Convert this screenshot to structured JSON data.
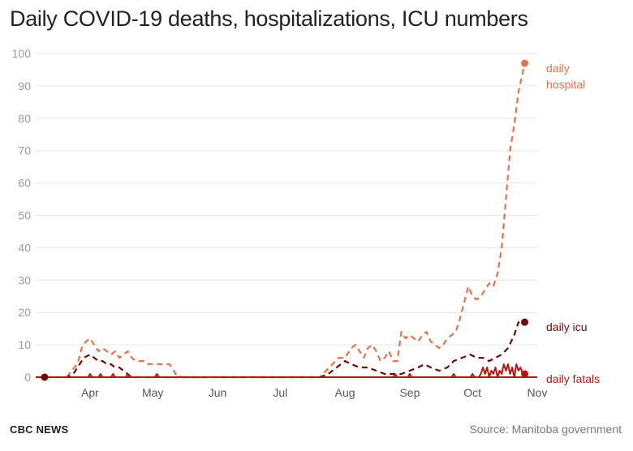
{
  "title": "Daily COVID-19 deaths, hospitalizations, ICU numbers",
  "footer": {
    "brand": "CBC NEWS",
    "source": "Source: Manitoba government"
  },
  "colors": {
    "hospital": "#e2734c",
    "icu": "#6a0a0a",
    "fatals": "#b01818",
    "grid": "#e6e6e6",
    "tick": "#9a9a9a"
  },
  "chart_data": {
    "type": "line",
    "x_unit": "date (2020)",
    "x_start": "2020-03-06",
    "x_end": "2020-11-01",
    "ylim": [
      0,
      100
    ],
    "yticks": [
      0,
      10,
      20,
      30,
      40,
      50,
      60,
      70,
      80,
      90,
      100
    ],
    "xticks": [
      {
        "label": "Apr",
        "date": "2020-04-01"
      },
      {
        "label": "May",
        "date": "2020-05-01"
      },
      {
        "label": "Jun",
        "date": "2020-06-01"
      },
      {
        "label": "Jul",
        "date": "2020-07-01"
      },
      {
        "label": "Aug",
        "date": "2020-08-01"
      },
      {
        "label": "Sep",
        "date": "2020-09-01"
      },
      {
        "label": "Oct",
        "date": "2020-10-01"
      },
      {
        "label": "Nov",
        "date": "2020-11-01"
      }
    ],
    "grid": true,
    "legend": "end-of-line labels",
    "series": [
      {
        "name": "daily hospital",
        "label_lines": [
          "daily",
          "hospital"
        ],
        "color": "#e2734c",
        "dashed": true,
        "points": [
          [
            "2020-03-21",
            0
          ],
          [
            "2020-03-23",
            2
          ],
          [
            "2020-03-26",
            4
          ],
          [
            "2020-03-28",
            9
          ],
          [
            "2020-03-30",
            11
          ],
          [
            "2020-04-01",
            12
          ],
          [
            "2020-04-03",
            10
          ],
          [
            "2020-04-05",
            8
          ],
          [
            "2020-04-07",
            9
          ],
          [
            "2020-04-09",
            8
          ],
          [
            "2020-04-11",
            7
          ],
          [
            "2020-04-13",
            8
          ],
          [
            "2020-04-15",
            6
          ],
          [
            "2020-04-17",
            7
          ],
          [
            "2020-04-19",
            8
          ],
          [
            "2020-04-21",
            6
          ],
          [
            "2020-04-23",
            5
          ],
          [
            "2020-04-25",
            5
          ],
          [
            "2020-04-27",
            5
          ],
          [
            "2020-04-29",
            4
          ],
          [
            "2020-05-01",
            4
          ],
          [
            "2020-05-05",
            4
          ],
          [
            "2020-05-09",
            4
          ],
          [
            "2020-05-12",
            1
          ],
          [
            "2020-05-15",
            0
          ],
          [
            "2020-05-20",
            0
          ],
          [
            "2020-07-01",
            0
          ],
          [
            "2020-07-20",
            0
          ],
          [
            "2020-07-23",
            2
          ],
          [
            "2020-07-26",
            4
          ],
          [
            "2020-07-29",
            6
          ],
          [
            "2020-08-01",
            6
          ],
          [
            "2020-08-04",
            9
          ],
          [
            "2020-08-06",
            10
          ],
          [
            "2020-08-08",
            8
          ],
          [
            "2020-08-10",
            6
          ],
          [
            "2020-08-12",
            9
          ],
          [
            "2020-08-14",
            10
          ],
          [
            "2020-08-16",
            8
          ],
          [
            "2020-08-18",
            5
          ],
          [
            "2020-08-20",
            6
          ],
          [
            "2020-08-22",
            8
          ],
          [
            "2020-08-24",
            5
          ],
          [
            "2020-08-26",
            5
          ],
          [
            "2020-08-28",
            14
          ],
          [
            "2020-08-30",
            12
          ],
          [
            "2020-09-01",
            13
          ],
          [
            "2020-09-03",
            12
          ],
          [
            "2020-09-05",
            11
          ],
          [
            "2020-09-07",
            13
          ],
          [
            "2020-09-09",
            14
          ],
          [
            "2020-09-11",
            11
          ],
          [
            "2020-09-13",
            10
          ],
          [
            "2020-09-15",
            9
          ],
          [
            "2020-09-17",
            10
          ],
          [
            "2020-09-19",
            12
          ],
          [
            "2020-09-21",
            13
          ],
          [
            "2020-09-23",
            14
          ],
          [
            "2020-09-25",
            18
          ],
          [
            "2020-09-27",
            23
          ],
          [
            "2020-09-29",
            28
          ],
          [
            "2020-10-01",
            25
          ],
          [
            "2020-10-03",
            24
          ],
          [
            "2020-10-05",
            25
          ],
          [
            "2020-10-07",
            27
          ],
          [
            "2020-10-09",
            29
          ],
          [
            "2020-10-11",
            28
          ],
          [
            "2020-10-13",
            32
          ],
          [
            "2020-10-15",
            40
          ],
          [
            "2020-10-17",
            55
          ],
          [
            "2020-10-19",
            70
          ],
          [
            "2020-10-21",
            78
          ],
          [
            "2020-10-23",
            88
          ],
          [
            "2020-10-25",
            94
          ],
          [
            "2020-10-26",
            97
          ]
        ],
        "end_value": 97
      },
      {
        "name": "daily icu",
        "label_lines": [
          "daily icu"
        ],
        "color": "#6a0a0a",
        "dashed": true,
        "points": [
          [
            "2020-03-06",
            0
          ],
          [
            "2020-03-21",
            0
          ],
          [
            "2020-03-24",
            1
          ],
          [
            "2020-03-27",
            4
          ],
          [
            "2020-03-29",
            6
          ],
          [
            "2020-04-01",
            7
          ],
          [
            "2020-04-03",
            6
          ],
          [
            "2020-04-05",
            5
          ],
          [
            "2020-04-07",
            5
          ],
          [
            "2020-04-09",
            4
          ],
          [
            "2020-04-11",
            4
          ],
          [
            "2020-04-13",
            3
          ],
          [
            "2020-04-15",
            3
          ],
          [
            "2020-04-17",
            2
          ],
          [
            "2020-04-19",
            1
          ],
          [
            "2020-04-21",
            0
          ],
          [
            "2020-07-20",
            0
          ],
          [
            "2020-07-24",
            1
          ],
          [
            "2020-07-28",
            3
          ],
          [
            "2020-08-01",
            5
          ],
          [
            "2020-08-04",
            4
          ],
          [
            "2020-08-08",
            3
          ],
          [
            "2020-08-12",
            3
          ],
          [
            "2020-08-16",
            2
          ],
          [
            "2020-08-20",
            1
          ],
          [
            "2020-08-24",
            1
          ],
          [
            "2020-08-28",
            1
          ],
          [
            "2020-09-01",
            2
          ],
          [
            "2020-09-05",
            3
          ],
          [
            "2020-09-08",
            4
          ],
          [
            "2020-09-11",
            3
          ],
          [
            "2020-09-15",
            2
          ],
          [
            "2020-09-19",
            3
          ],
          [
            "2020-09-22",
            5
          ],
          [
            "2020-09-26",
            6
          ],
          [
            "2020-09-30",
            7
          ],
          [
            "2020-10-03",
            6
          ],
          [
            "2020-10-06",
            6
          ],
          [
            "2020-10-09",
            5
          ],
          [
            "2020-10-12",
            6
          ],
          [
            "2020-10-15",
            7
          ],
          [
            "2020-10-18",
            9
          ],
          [
            "2020-10-21",
            13
          ],
          [
            "2020-10-23",
            17
          ],
          [
            "2020-10-24",
            16
          ],
          [
            "2020-10-26",
            17
          ]
        ],
        "end_value": 17
      },
      {
        "name": "daily fatals",
        "label_lines": [
          "daily fatals"
        ],
        "color": "#b01818",
        "dashed": false,
        "points": [
          [
            "2020-03-06",
            0
          ],
          [
            "2020-03-31",
            0
          ],
          [
            "2020-04-01",
            1
          ],
          [
            "2020-04-02",
            0
          ],
          [
            "2020-04-05",
            0
          ],
          [
            "2020-04-06",
            1
          ],
          [
            "2020-04-07",
            0
          ],
          [
            "2020-04-11",
            0
          ],
          [
            "2020-04-12",
            1
          ],
          [
            "2020-04-13",
            0
          ],
          [
            "2020-04-18",
            0
          ],
          [
            "2020-04-19",
            1
          ],
          [
            "2020-04-20",
            0
          ],
          [
            "2020-05-02",
            0
          ],
          [
            "2020-05-03",
            1
          ],
          [
            "2020-05-04",
            0
          ],
          [
            "2020-08-24",
            0
          ],
          [
            "2020-08-25",
            1
          ],
          [
            "2020-08-26",
            0
          ],
          [
            "2020-08-31",
            0
          ],
          [
            "2020-09-01",
            1
          ],
          [
            "2020-09-02",
            0
          ],
          [
            "2020-09-21",
            0
          ],
          [
            "2020-09-22",
            1
          ],
          [
            "2020-09-23",
            0
          ],
          [
            "2020-09-30",
            0
          ],
          [
            "2020-10-01",
            1
          ],
          [
            "2020-10-02",
            0
          ],
          [
            "2020-10-04",
            0
          ],
          [
            "2020-10-05",
            1
          ],
          [
            "2020-10-06",
            3
          ],
          [
            "2020-10-07",
            1
          ],
          [
            "2020-10-08",
            3
          ],
          [
            "2020-10-09",
            0
          ],
          [
            "2020-10-10",
            2
          ],
          [
            "2020-10-11",
            1
          ],
          [
            "2020-10-12",
            3
          ],
          [
            "2020-10-13",
            0
          ],
          [
            "2020-10-14",
            2
          ],
          [
            "2020-10-15",
            1
          ],
          [
            "2020-10-16",
            4
          ],
          [
            "2020-10-17",
            2
          ],
          [
            "2020-10-18",
            4
          ],
          [
            "2020-10-19",
            1
          ],
          [
            "2020-10-20",
            3
          ],
          [
            "2020-10-21",
            0
          ],
          [
            "2020-10-22",
            4
          ],
          [
            "2020-10-23",
            2
          ],
          [
            "2020-10-24",
            3
          ],
          [
            "2020-10-25",
            1
          ],
          [
            "2020-10-26",
            1
          ]
        ],
        "end_value": 1
      }
    ]
  }
}
